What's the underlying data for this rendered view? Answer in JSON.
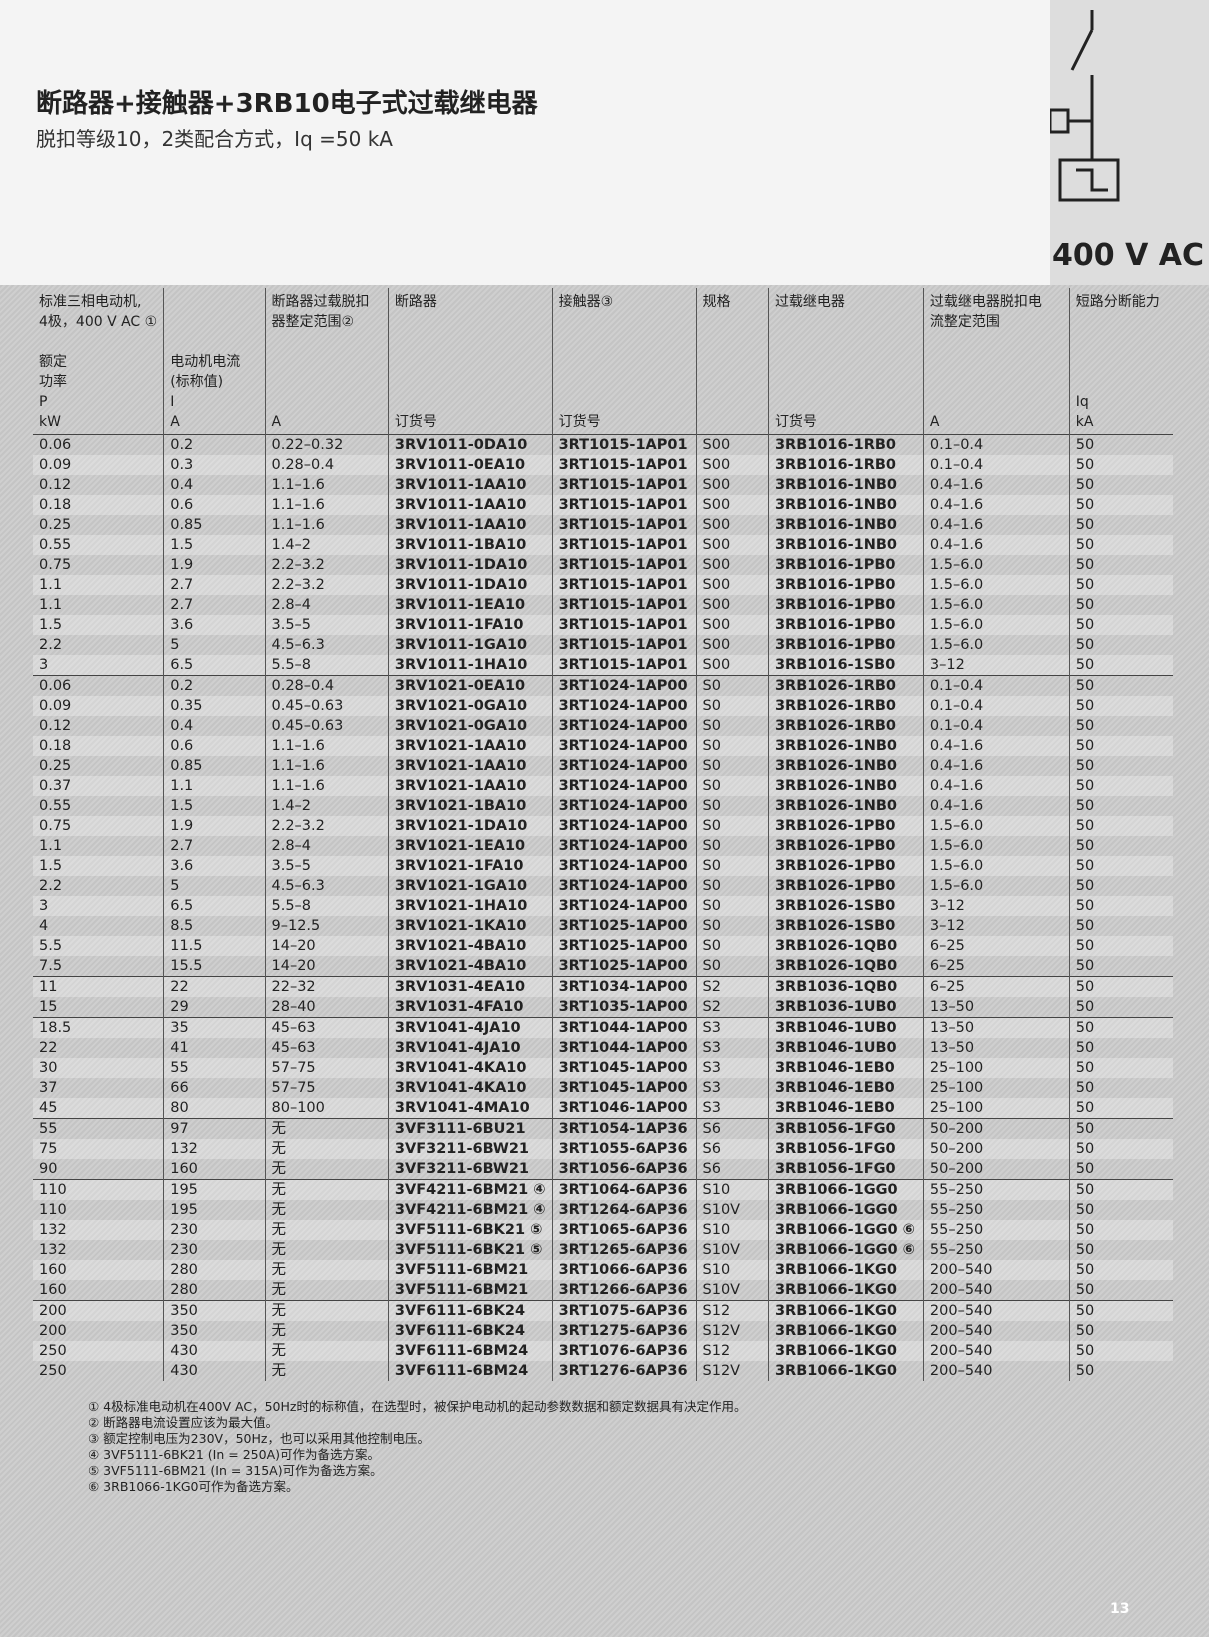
{
  "header": {
    "title": "断路器+接触器+3RB10电子式过载继电器",
    "subtitle": "脱扣等级10，2类配合方式，Iq =50 kA",
    "voltage": "400 V AC"
  },
  "columns": [
    {
      "lines": [
        "标准三相电动机,",
        "4极，400 V AC ①",
        "",
        "额定",
        "功率",
        "P",
        "kW"
      ]
    },
    {
      "lines": [
        "",
        "",
        "",
        "电动机电流",
        "(标称值)",
        "I",
        "A"
      ]
    },
    {
      "lines": [
        "断路器过载脱扣",
        "器整定范围②",
        "",
        "",
        "",
        "",
        "A"
      ]
    },
    {
      "lines": [
        "断路器",
        "",
        "",
        "",
        "",
        "",
        "订货号"
      ]
    },
    {
      "lines": [
        "接触器③",
        "",
        "",
        "",
        "",
        "",
        "订货号"
      ]
    },
    {
      "lines": [
        "规格",
        "",
        "",
        "",
        "",
        "",
        ""
      ]
    },
    {
      "lines": [
        "过载继电器",
        "",
        "",
        "",
        "",
        "",
        "订货号"
      ]
    },
    {
      "lines": [
        "过载继电器脱扣电",
        "流整定范围",
        "",
        "",
        "",
        "",
        "A"
      ]
    },
    {
      "lines": [
        "短路分断能力",
        "",
        "",
        "",
        "",
        "Iq",
        "kA"
      ]
    }
  ],
  "rows": [
    [
      "0.06",
      "0.2",
      "0.22–0.32",
      "3RV1011-0DA10",
      "3RT1015-1AP01",
      "S00",
      "3RB1016-1RB0",
      "0.1–0.4",
      "50"
    ],
    [
      "0.09",
      "0.3",
      "0.28–0.4",
      "3RV1011-0EA10",
      "3RT1015-1AP01",
      "S00",
      "3RB1016-1RB0",
      "0.1–0.4",
      "50"
    ],
    [
      "0.12",
      "0.4",
      "1.1–1.6",
      "3RV1011-1AA10",
      "3RT1015-1AP01",
      "S00",
      "3RB1016-1NB0",
      "0.4–1.6",
      "50"
    ],
    [
      "0.18",
      "0.6",
      "1.1–1.6",
      "3RV1011-1AA10",
      "3RT1015-1AP01",
      "S00",
      "3RB1016-1NB0",
      "0.4–1.6",
      "50"
    ],
    [
      "0.25",
      "0.85",
      "1.1–1.6",
      "3RV1011-1AA10",
      "3RT1015-1AP01",
      "S00",
      "3RB1016-1NB0",
      "0.4–1.6",
      "50"
    ],
    [
      "0.55",
      "1.5",
      "1.4–2",
      "3RV1011-1BA10",
      "3RT1015-1AP01",
      "S00",
      "3RB1016-1NB0",
      "0.4–1.6",
      "50"
    ],
    [
      "0.75",
      "1.9",
      "2.2–3.2",
      "3RV1011-1DA10",
      "3RT1015-1AP01",
      "S00",
      "3RB1016-1PB0",
      "1.5–6.0",
      "50"
    ],
    [
      "1.1",
      "2.7",
      "2.2–3.2",
      "3RV1011-1DA10",
      "3RT1015-1AP01",
      "S00",
      "3RB1016-1PB0",
      "1.5–6.0",
      "50"
    ],
    [
      "1.1",
      "2.7",
      "2.8–4",
      "3RV1011-1EA10",
      "3RT1015-1AP01",
      "S00",
      "3RB1016-1PB0",
      "1.5–6.0",
      "50"
    ],
    [
      "1.5",
      "3.6",
      "3.5–5",
      "3RV1011-1FA10",
      "3RT1015-1AP01",
      "S00",
      "3RB1016-1PB0",
      "1.5–6.0",
      "50"
    ],
    [
      "2.2",
      "5",
      "4.5–6.3",
      "3RV1011-1GA10",
      "3RT1015-1AP01",
      "S00",
      "3RB1016-1PB0",
      "1.5–6.0",
      "50"
    ],
    [
      "3",
      "6.5",
      "5.5–8",
      "3RV1011-1HA10",
      "3RT1015-1AP01",
      "S00",
      "3RB1016-1SB0",
      "3–12",
      "50"
    ],
    [
      "0.06",
      "0.2",
      "0.28–0.4",
      "3RV1021-0EA10",
      "3RT1024-1AP00",
      "S0",
      "3RB1026-1RB0",
      "0.1–0.4",
      "50"
    ],
    [
      "0.09",
      "0.35",
      "0.45–0.63",
      "3RV1021-0GA10",
      "3RT1024-1AP00",
      "S0",
      "3RB1026-1RB0",
      "0.1–0.4",
      "50"
    ],
    [
      "0.12",
      "0.4",
      "0.45–0.63",
      "3RV1021-0GA10",
      "3RT1024-1AP00",
      "S0",
      "3RB1026-1RB0",
      "0.1–0.4",
      "50"
    ],
    [
      "0.18",
      "0.6",
      "1.1–1.6",
      "3RV1021-1AA10",
      "3RT1024-1AP00",
      "S0",
      "3RB1026-1NB0",
      "0.4–1.6",
      "50"
    ],
    [
      "0.25",
      "0.85",
      "1.1–1.6",
      "3RV1021-1AA10",
      "3RT1024-1AP00",
      "S0",
      "3RB1026-1NB0",
      "0.4–1.6",
      "50"
    ],
    [
      "0.37",
      "1.1",
      "1.1–1.6",
      "3RV1021-1AA10",
      "3RT1024-1AP00",
      "S0",
      "3RB1026-1NB0",
      "0.4–1.6",
      "50"
    ],
    [
      "0.55",
      "1.5",
      "1.4–2",
      "3RV1021-1BA10",
      "3RT1024-1AP00",
      "S0",
      "3RB1026-1NB0",
      "0.4–1.6",
      "50"
    ],
    [
      "0.75",
      "1.9",
      "2.2–3.2",
      "3RV1021-1DA10",
      "3RT1024-1AP00",
      "S0",
      "3RB1026-1PB0",
      "1.5–6.0",
      "50"
    ],
    [
      "1.1",
      "2.7",
      "2.8–4",
      "3RV1021-1EA10",
      "3RT1024-1AP00",
      "S0",
      "3RB1026-1PB0",
      "1.5–6.0",
      "50"
    ],
    [
      "1.5",
      "3.6",
      "3.5–5",
      "3RV1021-1FA10",
      "3RT1024-1AP00",
      "S0",
      "3RB1026-1PB0",
      "1.5–6.0",
      "50"
    ],
    [
      "2.2",
      "5",
      "4.5–6.3",
      "3RV1021-1GA10",
      "3RT1024-1AP00",
      "S0",
      "3RB1026-1PB0",
      "1.5–6.0",
      "50"
    ],
    [
      "3",
      "6.5",
      "5.5–8",
      "3RV1021-1HA10",
      "3RT1024-1AP00",
      "S0",
      "3RB1026-1SB0",
      "3–12",
      "50"
    ],
    [
      "4",
      "8.5",
      "9–12.5",
      "3RV1021-1KA10",
      "3RT1025-1AP00",
      "S0",
      "3RB1026-1SB0",
      "3–12",
      "50"
    ],
    [
      "5.5",
      "11.5",
      "14–20",
      "3RV1021-4BA10",
      "3RT1025-1AP00",
      "S0",
      "3RB1026-1QB0",
      "6–25",
      "50"
    ],
    [
      "7.5",
      "15.5",
      "14–20",
      "3RV1021-4BA10",
      "3RT1025-1AP00",
      "S0",
      "3RB1026-1QB0",
      "6–25",
      "50"
    ],
    [
      "11",
      "22",
      "22–32",
      "3RV1031-4EA10",
      "3RT1034-1AP00",
      "S2",
      "3RB1036-1QB0",
      "6–25",
      "50"
    ],
    [
      "15",
      "29",
      "28–40",
      "3RV1031-4FA10",
      "3RT1035-1AP00",
      "S2",
      "3RB1036-1UB0",
      "13–50",
      "50"
    ],
    [
      "18.5",
      "35",
      "45–63",
      "3RV1041-4JA10",
      "3RT1044-1AP00",
      "S3",
      "3RB1046-1UB0",
      "13–50",
      "50"
    ],
    [
      "22",
      "41",
      "45–63",
      "3RV1041-4JA10",
      "3RT1044-1AP00",
      "S3",
      "3RB1046-1UB0",
      "13–50",
      "50"
    ],
    [
      "30",
      "55",
      "57–75",
      "3RV1041-4KA10",
      "3RT1045-1AP00",
      "S3",
      "3RB1046-1EB0",
      "25–100",
      "50"
    ],
    [
      "37",
      "66",
      "57–75",
      "3RV1041-4KA10",
      "3RT1045-1AP00",
      "S3",
      "3RB1046-1EB0",
      "25–100",
      "50"
    ],
    [
      "45",
      "80",
      "80–100",
      "3RV1041-4MA10",
      "3RT1046-1AP00",
      "S3",
      "3RB1046-1EB0",
      "25–100",
      "50"
    ],
    [
      "55",
      "97",
      "无",
      "3VF3111-6BU21",
      "3RT1054-1AP36",
      "S6",
      "3RB1056-1FG0",
      "50–200",
      "50"
    ],
    [
      "75",
      "132",
      "无",
      "3VF3211-6BW21",
      "3RT1055-6AP36",
      "S6",
      "3RB1056-1FG0",
      "50–200",
      "50"
    ],
    [
      "90",
      "160",
      "无",
      "3VF3211-6BW21",
      "3RT1056-6AP36",
      "S6",
      "3RB1056-1FG0",
      "50–200",
      "50"
    ],
    [
      "110",
      "195",
      "无",
      "3VF4211-6BM21 ④",
      "3RT1064-6AP36",
      "S10",
      "3RB1066-1GG0",
      "55–250",
      "50"
    ],
    [
      "110",
      "195",
      "无",
      "3VF4211-6BM21 ④",
      "3RT1264-6AP36",
      "S10V",
      "3RB1066-1GG0",
      "55–250",
      "50"
    ],
    [
      "132",
      "230",
      "无",
      "3VF5111-6BK21 ⑤",
      "3RT1065-6AP36",
      "S10",
      "3RB1066-1GG0 ⑥",
      "55–250",
      "50"
    ],
    [
      "132",
      "230",
      "无",
      "3VF5111-6BK21 ⑤",
      "3RT1265-6AP36",
      "S10V",
      "3RB1066-1GG0 ⑥",
      "55–250",
      "50"
    ],
    [
      "160",
      "280",
      "无",
      "3VF5111-6BM21",
      "3RT1066-6AP36",
      "S10",
      "3RB1066-1KG0",
      "200–540",
      "50"
    ],
    [
      "160",
      "280",
      "无",
      "3VF5111-6BM21",
      "3RT1266-6AP36",
      "S10V",
      "3RB1066-1KG0",
      "200–540",
      "50"
    ],
    [
      "200",
      "350",
      "无",
      "3VF6111-6BK24",
      "3RT1075-6AP36",
      "S12",
      "3RB1066-1KG0",
      "200–540",
      "50"
    ],
    [
      "200",
      "350",
      "无",
      "3VF6111-6BK24",
      "3RT1275-6AP36",
      "S12V",
      "3RB1066-1KG0",
      "200–540",
      "50"
    ],
    [
      "250",
      "430",
      "无",
      "3VF6111-6BM24",
      "3RT1076-6AP36",
      "S12",
      "3RB1066-1KG0",
      "200–540",
      "50"
    ],
    [
      "250",
      "430",
      "无",
      "3VF6111-6BM24",
      "3RT1276-6AP36",
      "S12V",
      "3RB1066-1KG0",
      "200–540",
      "50"
    ]
  ],
  "footnotes": [
    "① 4极标准电动机在400V AC，50Hz时的标称值，在选型时，被保护电动机的起动参数数据和额定数据具有决定作用。",
    "② 断路器电流设置应该为最大值。",
    "③ 额定控制电压为230V，50Hz，也可以采用其他控制电压。",
    "④ 3VF5111-6BK21 (In = 250A)可作为备选方案。",
    "⑤ 3VF5111-6BM21 (In = 315A)可作为备选方案。",
    "⑥ 3RB1066-1KG0可作为备选方案。"
  ],
  "page_number": "13"
}
